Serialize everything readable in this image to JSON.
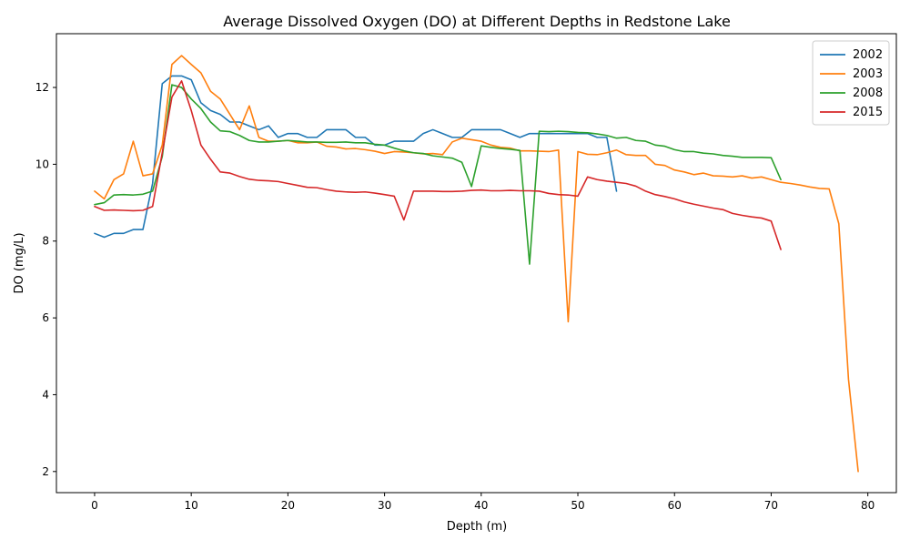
{
  "chart_data": {
    "type": "line",
    "title": "Average Dissolved Oxygen (DO) at Different Depths in Redstone Lake",
    "xlabel": "Depth (m)",
    "ylabel": "DO (mg/L)",
    "xlim": [
      -3.95,
      82.95
    ],
    "ylim": [
      1.45,
      13.4
    ],
    "xticks": [
      0,
      10,
      20,
      30,
      40,
      50,
      60,
      70,
      80
    ],
    "yticks": [
      2,
      4,
      6,
      8,
      10,
      12
    ],
    "grid": false,
    "legend_position": "upper right",
    "series": [
      {
        "name": "2002",
        "color": "#1f77b4",
        "x": [
          0,
          1,
          2,
          3,
          4,
          5,
          6,
          7,
          8,
          9,
          10,
          11,
          12,
          13,
          14,
          15,
          16,
          17,
          18,
          19,
          20,
          21,
          22,
          23,
          24,
          25,
          26,
          27,
          28,
          29,
          30,
          31,
          32,
          33,
          34,
          35,
          36,
          37,
          38,
          39,
          40,
          41,
          42,
          43,
          44,
          45,
          46,
          47,
          48,
          49,
          50,
          51,
          52,
          53,
          54
        ],
        "y": [
          8.2,
          8.1,
          8.2,
          8.2,
          8.3,
          8.3,
          9.5,
          12.1,
          12.3,
          12.3,
          12.2,
          11.6,
          11.4,
          11.3,
          11.1,
          11.1,
          11.0,
          10.9,
          11.0,
          10.7,
          10.8,
          10.8,
          10.7,
          10.7,
          10.9,
          10.9,
          10.9,
          10.7,
          10.7,
          10.5,
          10.5,
          10.6,
          10.6,
          10.6,
          10.8,
          10.9,
          10.8,
          10.7,
          10.7,
          10.9,
          10.9,
          10.9,
          10.9,
          10.8,
          10.7,
          10.8,
          10.8,
          10.8,
          10.8,
          10.8,
          10.8,
          10.8,
          10.7,
          10.7,
          9.3
        ]
      },
      {
        "name": "2003",
        "color": "#ff7f0e",
        "x": [
          0,
          1,
          2,
          3,
          4,
          5,
          6,
          7,
          8,
          9,
          10,
          11,
          12,
          13,
          14,
          15,
          16,
          17,
          18,
          19,
          20,
          21,
          22,
          23,
          24,
          25,
          26,
          27,
          28,
          29,
          30,
          31,
          32,
          33,
          34,
          35,
          36,
          37,
          38,
          39,
          40,
          41,
          42,
          43,
          44,
          45,
          46,
          47,
          48,
          49,
          50,
          51,
          52,
          53,
          54,
          55,
          56,
          57,
          58,
          59,
          60,
          61,
          62,
          63,
          64,
          65,
          66,
          67,
          68,
          69,
          70,
          71,
          72,
          73,
          74,
          75,
          76,
          77,
          78,
          79
        ],
        "y": [
          9.3,
          9.1,
          9.6,
          9.75,
          10.6,
          9.7,
          9.75,
          10.5,
          12.6,
          12.83,
          12.6,
          12.38,
          11.9,
          11.7,
          11.3,
          10.9,
          11.52,
          10.7,
          10.6,
          10.6,
          10.62,
          10.56,
          10.56,
          10.58,
          10.47,
          10.45,
          10.4,
          10.41,
          10.38,
          10.34,
          10.28,
          10.33,
          10.32,
          10.3,
          10.27,
          10.28,
          10.25,
          10.58,
          10.68,
          10.64,
          10.6,
          10.5,
          10.44,
          10.42,
          10.35,
          10.35,
          10.34,
          10.33,
          10.37,
          5.9,
          10.33,
          10.26,
          10.25,
          10.3,
          10.37,
          10.25,
          10.23,
          10.23,
          10.0,
          9.97,
          9.85,
          9.8,
          9.73,
          9.77,
          9.7,
          9.69,
          9.67,
          9.7,
          9.64,
          9.67,
          9.6,
          9.53,
          9.5,
          9.46,
          9.41,
          9.37,
          9.36,
          8.45,
          4.4,
          2.0
        ]
      },
      {
        "name": "2008",
        "color": "#2ca02c",
        "x": [
          0,
          1,
          2,
          3,
          4,
          5,
          6,
          7,
          8,
          9,
          10,
          11,
          12,
          13,
          14,
          15,
          16,
          17,
          18,
          19,
          20,
          21,
          22,
          23,
          24,
          25,
          26,
          27,
          28,
          29,
          30,
          31,
          32,
          33,
          34,
          35,
          36,
          37,
          38,
          39,
          40,
          41,
          42,
          43,
          44,
          45,
          46,
          47,
          48,
          49,
          50,
          51,
          52,
          53,
          54,
          55,
          56,
          57,
          58,
          59,
          60,
          61,
          62,
          63,
          64,
          65,
          66,
          67,
          68,
          69,
          70,
          71
        ],
        "y": [
          8.95,
          9.0,
          9.2,
          9.21,
          9.2,
          9.22,
          9.3,
          10.2,
          12.07,
          12.0,
          11.7,
          11.45,
          11.1,
          10.87,
          10.85,
          10.75,
          10.62,
          10.58,
          10.58,
          10.6,
          10.62,
          10.6,
          10.58,
          10.58,
          10.57,
          10.57,
          10.58,
          10.56,
          10.56,
          10.52,
          10.5,
          10.42,
          10.35,
          10.3,
          10.28,
          10.22,
          10.19,
          10.16,
          10.05,
          9.42,
          10.48,
          10.44,
          10.41,
          10.39,
          10.36,
          7.4,
          10.86,
          10.85,
          10.86,
          10.85,
          10.83,
          10.82,
          10.79,
          10.75,
          10.68,
          10.7,
          10.62,
          10.6,
          10.5,
          10.47,
          10.38,
          10.33,
          10.33,
          10.29,
          10.27,
          10.23,
          10.21,
          10.18,
          10.18,
          10.18,
          10.17,
          9.6
        ]
      },
      {
        "name": "2015",
        "color": "#d62728",
        "x": [
          0,
          1,
          2,
          3,
          4,
          5,
          6,
          7,
          8,
          9,
          10,
          11,
          12,
          13,
          14,
          15,
          16,
          17,
          18,
          19,
          20,
          21,
          22,
          23,
          24,
          25,
          26,
          27,
          28,
          29,
          30,
          31,
          32,
          33,
          34,
          35,
          36,
          37,
          38,
          39,
          40,
          41,
          42,
          43,
          44,
          45,
          46,
          47,
          48,
          49,
          50,
          51,
          52,
          53,
          54,
          55,
          56,
          57,
          58,
          59,
          60,
          61,
          62,
          63,
          64,
          65,
          66,
          67,
          68,
          69,
          70,
          71
        ],
        "y": [
          8.9,
          8.8,
          8.81,
          8.8,
          8.79,
          8.8,
          8.9,
          10.3,
          11.75,
          12.17,
          11.4,
          10.5,
          10.13,
          9.8,
          9.77,
          9.68,
          9.61,
          9.58,
          9.57,
          9.55,
          9.5,
          9.45,
          9.4,
          9.39,
          9.34,
          9.3,
          9.28,
          9.27,
          9.28,
          9.25,
          9.21,
          9.17,
          8.55,
          9.3,
          9.3,
          9.3,
          9.29,
          9.29,
          9.3,
          9.32,
          9.33,
          9.31,
          9.31,
          9.32,
          9.31,
          9.31,
          9.3,
          9.24,
          9.21,
          9.2,
          9.17,
          9.67,
          9.6,
          9.56,
          9.53,
          9.5,
          9.43,
          9.3,
          9.21,
          9.16,
          9.1,
          9.02,
          8.96,
          8.91,
          8.86,
          8.82,
          8.72,
          8.67,
          8.63,
          8.6,
          8.52,
          7.78
        ]
      }
    ]
  }
}
